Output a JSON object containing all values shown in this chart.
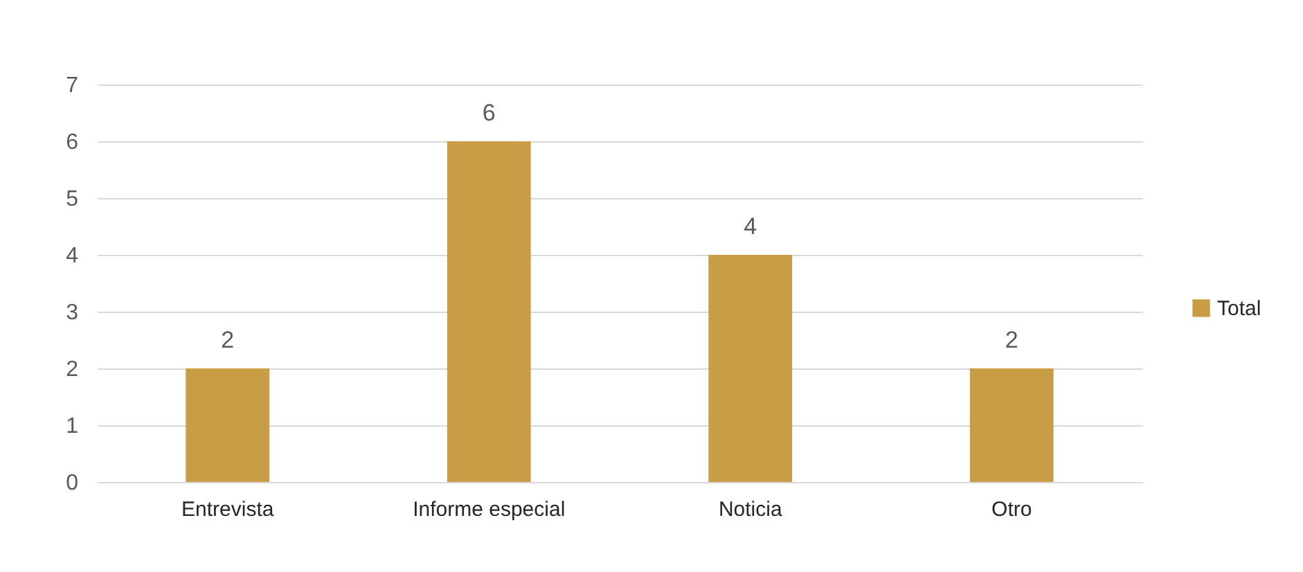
{
  "chart_data": {
    "type": "bar",
    "categories": [
      "Entrevista",
      "Informe especial",
      "Noticia",
      "Otro"
    ],
    "series": [
      {
        "name": "Total",
        "color": "#c99d45",
        "values": [
          2,
          6,
          4,
          2
        ]
      }
    ],
    "ylim": [
      0,
      7
    ],
    "yticks": [
      0,
      1,
      2,
      3,
      4,
      5,
      6,
      7
    ],
    "grid": "y",
    "legend": "right",
    "data_labels": true
  }
}
